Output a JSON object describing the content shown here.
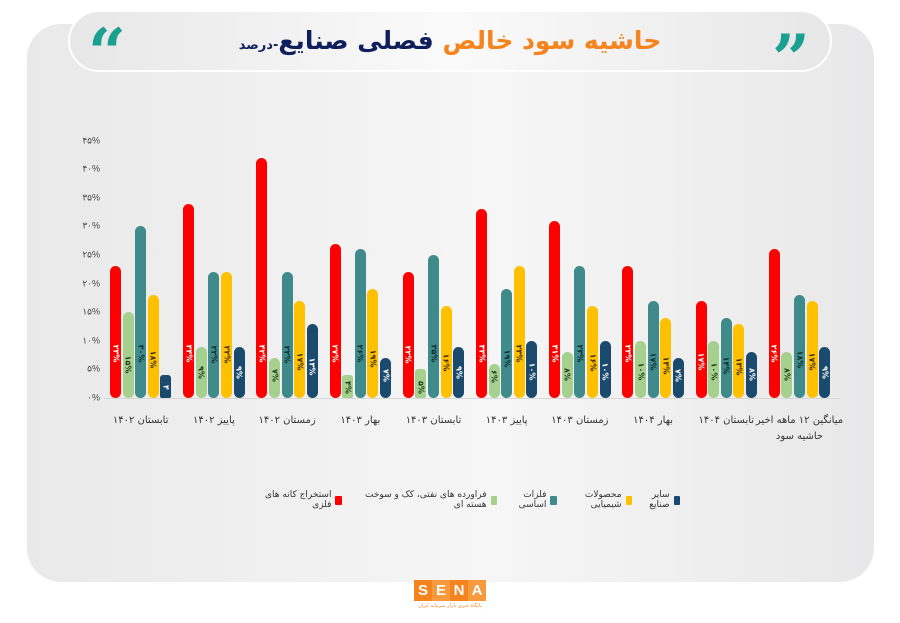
{
  "header": {
    "title_orange": "حاشیه سود خالص",
    "title_navy": "فصلی صنایع",
    "title_unit": "-درصد",
    "quote_open": "“",
    "quote_close": "”"
  },
  "colors": {
    "series": [
      "#ff0000",
      "#a6d08e",
      "#3f8a8b",
      "#ffc000",
      "#1a4a6e"
    ],
    "label_text": [
      "#ffffff",
      "#1b3a1b",
      "#0c2b2c",
      "#3a2a00",
      "#ffffff"
    ],
    "accent_teal": "#1aa090",
    "accent_orange": "#f5841f",
    "accent_navy": "#0e1f5b"
  },
  "chart_data": {
    "type": "bar",
    "title": "حاشیه سود خالص فصلی صنایع - درصد",
    "xlabel": "",
    "ylabel": "",
    "ylim": [
      0,
      45
    ],
    "yticks": [
      "۰%",
      "۵%",
      "۱۰%",
      "۱۵%",
      "۲۰%",
      "۲۵%",
      "۳۰%",
      "۳۵%",
      "۴۰%",
      "۴۵%"
    ],
    "ytick_values": [
      0,
      5,
      10,
      15,
      20,
      25,
      30,
      35,
      40,
      45
    ],
    "grid": false,
    "legend_position": "bottom",
    "categories": [
      "تابستان ۱۴۰۲",
      "پاییز ۱۴۰۲",
      "زمستان ۱۴۰۲",
      "بهار ۱۴۰۳",
      "تابستان ۱۴۰۳",
      "پاییز ۱۴۰۳",
      "زمستان ۱۴۰۳",
      "بهار ۱۴۰۴",
      "تابستان ۱۴۰۴",
      "میانگین ۱۲ ماهه اخیر حاشیه سود"
    ],
    "series": [
      {
        "name": "استخراج کانه های فلزی",
        "values": [
          23,
          34,
          42,
          27,
          22,
          33,
          31,
          23,
          17,
          26
        ]
      },
      {
        "name": "فراورده های نفتی، کک و سوخت هسته ای",
        "values": [
          15,
          9,
          7,
          4,
          5,
          6,
          8,
          10,
          10,
          8
        ]
      },
      {
        "name": "فلزات اساسی",
        "values": [
          30,
          22,
          22,
          26,
          25,
          19,
          23,
          17,
          14,
          18
        ]
      },
      {
        "name": "محصولات شیمیایی",
        "values": [
          18,
          22,
          17,
          19,
          16,
          23,
          16,
          14,
          13,
          17
        ]
      },
      {
        "name": "سایر صنایع",
        "values": [
          4,
          9,
          13,
          7,
          9,
          10,
          10,
          7,
          8,
          9
        ]
      }
    ],
    "value_labels": [
      [
        "۲۳%",
        "۱۵%",
        "۳۰%",
        "۱۸%",
        "۴"
      ],
      [
        "۳۴%",
        "۹%",
        "۲۲%",
        "۲۲%",
        "۹%"
      ],
      [
        "۴۲%",
        "۷%",
        "۲۲%",
        "۱۷%",
        "۱۳%"
      ],
      [
        "۲۷%",
        "۴%",
        "۲۶%",
        "۱۹%",
        "۷%"
      ],
      [
        "۲۲%",
        "۵%",
        "۲۵%",
        "۱۶%",
        "۹%"
      ],
      [
        "۳۳%",
        "۶%",
        "۱۹%",
        "۲۳%",
        "۱۰%"
      ],
      [
        "۳۱%",
        "۸%",
        "۲۳%",
        "۱۶%",
        "۱۰%"
      ],
      [
        "۲۳%",
        "۱۰%",
        "۱۷%",
        "۱۴%",
        "۷%"
      ],
      [
        "۱۷%",
        "۱۰%",
        "۱۴%",
        "۱۳%",
        "۸%"
      ],
      [
        "۲۶%",
        "۸%",
        "۱۸%",
        "۱۷%",
        "۹%"
      ]
    ]
  },
  "x_labels": [
    [
      "تابستان ۱۴۰۲"
    ],
    [
      "پاییز ۱۴۰۲"
    ],
    [
      "زمستان ۱۴۰۲"
    ],
    [
      "بهار ۱۴۰۳"
    ],
    [
      "تابستان ۱۴۰۳"
    ],
    [
      "پاییز ۱۴۰۳"
    ],
    [
      "زمستان ۱۴۰۳"
    ],
    [
      "بهار ۱۴۰۴"
    ],
    [
      "تابستان ۱۴۰۴"
    ],
    [
      "میانگین ۱۲ ماهه اخیر",
      "حاشیه سود"
    ]
  ],
  "legend": [
    {
      "label": "استخراج کانه های فلزی",
      "color": "#ff0000"
    },
    {
      "label": "فراورده های نفتی، کک و سوخت هسته ای",
      "color": "#a6d08e"
    },
    {
      "label": "فلزات اساسی",
      "color": "#3f8a8b"
    },
    {
      "label": "محصولات شیمیایی",
      "color": "#ffc000"
    },
    {
      "label": "سایر صنایع",
      "color": "#1a4a6e"
    }
  ],
  "logo": {
    "letters": [
      "S",
      "E",
      "N",
      "A"
    ],
    "letter_colors": [
      "#f5841f",
      "#f79a3e",
      "#f5841f",
      "#f79a3e"
    ],
    "subtitle": "پایگاه خبری بازار سرمایه ایران"
  }
}
